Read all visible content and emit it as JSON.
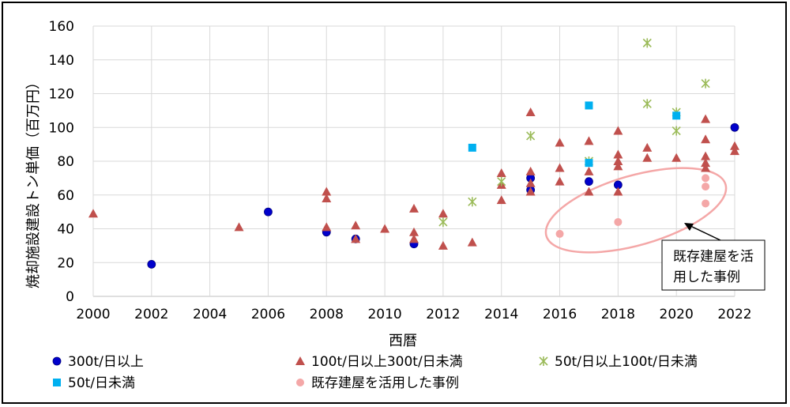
{
  "chart_data": {
    "type": "scatter",
    "xlabel": "西暦",
    "ylabel": "焼却施設建設トン単価（百万円）",
    "xlim": [
      2000,
      2022
    ],
    "ylim": [
      0,
      160
    ],
    "xticks": [
      "2000",
      "2002",
      "2004",
      "2006",
      "2008",
      "2010",
      "2012",
      "2014",
      "2016",
      "2018",
      "2020",
      "2022"
    ],
    "yticks": [
      "0",
      "20",
      "40",
      "60",
      "80",
      "100",
      "120",
      "140",
      "160"
    ],
    "grid": true,
    "series": [
      {
        "name": "300t/日以上",
        "marker": "circle",
        "color": "#0000cc",
        "points": [
          [
            2002,
            19
          ],
          [
            2006,
            50
          ],
          [
            2008,
            38
          ],
          [
            2009,
            34
          ],
          [
            2011,
            31
          ],
          [
            2015,
            63
          ],
          [
            2015,
            70
          ],
          [
            2017,
            68
          ],
          [
            2018,
            66
          ],
          [
            2022,
            100
          ]
        ]
      },
      {
        "name": "100t/日以上300t/日未満",
        "marker": "triangle",
        "color": "#c0504d",
        "points": [
          [
            2000,
            49
          ],
          [
            2005,
            41
          ],
          [
            2008,
            62
          ],
          [
            2008,
            58
          ],
          [
            2008,
            41
          ],
          [
            2009,
            42
          ],
          [
            2009,
            34
          ],
          [
            2010,
            40
          ],
          [
            2011,
            52
          ],
          [
            2011,
            38
          ],
          [
            2011,
            34
          ],
          [
            2012,
            49
          ],
          [
            2012,
            30
          ],
          [
            2013,
            32
          ],
          [
            2014,
            73
          ],
          [
            2014,
            66
          ],
          [
            2014,
            57
          ],
          [
            2015,
            109
          ],
          [
            2015,
            74
          ],
          [
            2015,
            67
          ],
          [
            2015,
            62
          ],
          [
            2016,
            91
          ],
          [
            2016,
            76
          ],
          [
            2016,
            68
          ],
          [
            2017,
            92
          ],
          [
            2017,
            74
          ],
          [
            2017,
            62
          ],
          [
            2018,
            98
          ],
          [
            2018,
            84
          ],
          [
            2018,
            80
          ],
          [
            2018,
            77
          ],
          [
            2018,
            62
          ],
          [
            2019,
            88
          ],
          [
            2019,
            82
          ],
          [
            2020,
            82
          ],
          [
            2021,
            105
          ],
          [
            2021,
            93
          ],
          [
            2021,
            83
          ],
          [
            2021,
            79
          ],
          [
            2021,
            76
          ],
          [
            2022,
            89
          ],
          [
            2022,
            86
          ]
        ]
      },
      {
        "name": "50t/日以上100t/日未満",
        "marker": "asterisk",
        "color": "#9bbb59",
        "points": [
          [
            2012,
            44
          ],
          [
            2013,
            56
          ],
          [
            2014,
            68
          ],
          [
            2015,
            95
          ],
          [
            2017,
            80
          ],
          [
            2019,
            150
          ],
          [
            2019,
            114
          ],
          [
            2020,
            109
          ],
          [
            2020,
            98
          ],
          [
            2021,
            126
          ]
        ]
      },
      {
        "name": "50t/日未満",
        "marker": "square",
        "color": "#00b0f0",
        "points": [
          [
            2013,
            88
          ],
          [
            2017,
            113
          ],
          [
            2017,
            79
          ],
          [
            2020,
            107
          ]
        ]
      },
      {
        "name": "既存建屋を活用した事例",
        "marker": "circle",
        "color": "#f4a7a7",
        "points": [
          [
            2016,
            37
          ],
          [
            2018,
            44
          ],
          [
            2021,
            70
          ],
          [
            2021,
            65
          ],
          [
            2021,
            55
          ]
        ]
      }
    ],
    "annotation": {
      "text_lines": [
        "既存建屋を活",
        "用した事例"
      ],
      "highlight_color": "#f4a7a7"
    }
  }
}
